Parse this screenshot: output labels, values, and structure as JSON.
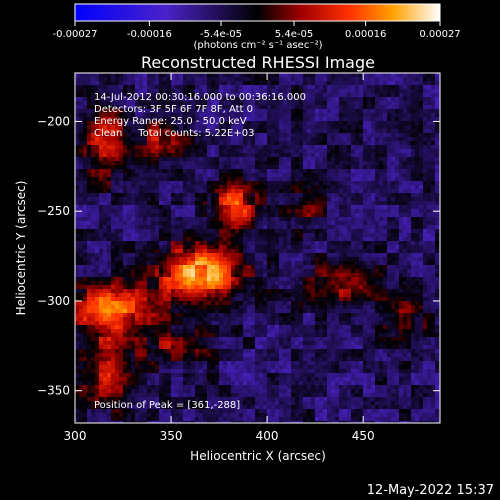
{
  "colorbar": {
    "ticks": [
      "-0.00027",
      "-0.00016",
      "-5.4e-05",
      "5.4e-05",
      "0.00016",
      "0.00027"
    ],
    "unit_label": "(photons cm⁻² s⁻¹ asec⁻²)",
    "range": [
      -0.00027,
      0.00027
    ]
  },
  "chart_data": {
    "type": "heatmap",
    "title": "Reconstructed RHESSI Image",
    "xlabel": "Heliocentric X (arcsec)",
    "ylabel": "Heliocentric Y (arcsec)",
    "xlim": [
      300,
      490
    ],
    "ylim": [
      -368,
      -173
    ],
    "x_ticks": [
      300,
      350,
      400,
      450
    ],
    "y_ticks": [
      -200,
      -250,
      -300,
      -350
    ],
    "grid": false,
    "peak_position": [
      361,
      -288
    ],
    "annotations": [
      "14-Jul-2012 00:30:16.000 to 00:36:16.000",
      "Detectors: 3F 5F 6F 7F 8F, Att 0",
      "Energy Range: 25.0 - 50.0 keV",
      "Clean     Total counts: 5.22E+03",
      "Position of Peak = [361,-288]"
    ],
    "sources": [
      {
        "x": 365,
        "y": -285,
        "rx": 22,
        "ry": 16,
        "amp": 0.00027
      },
      {
        "x": 383,
        "y": -247,
        "rx": 12,
        "ry": 14,
        "amp": 0.0002
      },
      {
        "x": 318,
        "y": -305,
        "rx": 22,
        "ry": 14,
        "amp": 0.00022
      },
      {
        "x": 315,
        "y": -212,
        "rx": 12,
        "ry": 18,
        "amp": 0.00017
      },
      {
        "x": 345,
        "y": -210,
        "rx": 14,
        "ry": 12,
        "amp": 0.00012
      },
      {
        "x": 318,
        "y": -340,
        "rx": 14,
        "ry": 20,
        "amp": 0.00015
      },
      {
        "x": 355,
        "y": -325,
        "rx": 18,
        "ry": 10,
        "amp": 0.00011
      },
      {
        "x": 440,
        "y": -290,
        "rx": 22,
        "ry": 12,
        "amp": 0.00012
      },
      {
        "x": 420,
        "y": -250,
        "rx": 10,
        "ry": 12,
        "amp": 9e-05
      },
      {
        "x": 470,
        "y": -310,
        "rx": 14,
        "ry": 12,
        "amp": 9e-05
      }
    ]
  },
  "timestamp": "12-May-2022 15:37"
}
